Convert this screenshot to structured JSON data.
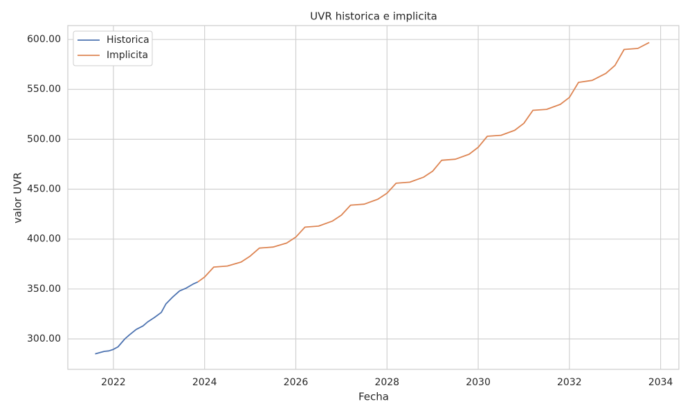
{
  "chart_data": {
    "type": "line",
    "title": "UVR historica e implicita",
    "xlabel": "Fecha",
    "ylabel": "valor UVR",
    "xlim": [
      2021.0,
      2034.4
    ],
    "xticks": [
      2022,
      2024,
      2026,
      2028,
      2030,
      2032,
      2034
    ],
    "ylim": [
      269.5,
      613.9
    ],
    "yticks": [
      {
        "value": 300,
        "label": "300.00"
      },
      {
        "value": 350,
        "label": "350.00"
      },
      {
        "value": 400,
        "label": "400.00"
      },
      {
        "value": 450,
        "label": "450.00"
      },
      {
        "value": 500,
        "label": "500.00"
      },
      {
        "value": 550,
        "label": "550.00"
      },
      {
        "value": 600,
        "label": "600.00"
      }
    ],
    "grid": true,
    "legend": "upper-left",
    "series": [
      {
        "name": "Historica",
        "color": "#4c72b0",
        "x": [
          2021.6,
          2021.8,
          2021.9,
          2022.0,
          2022.1,
          2022.25,
          2022.35,
          2022.5,
          2022.65,
          2022.75,
          2022.9,
          2023.05,
          2023.15,
          2023.3,
          2023.45,
          2023.6,
          2023.75,
          2023.85
        ],
        "values": [
          285,
          287.5,
          288,
          289.5,
          292,
          300,
          304,
          309.5,
          313,
          317,
          321.5,
          326.5,
          335,
          342,
          348,
          351,
          355,
          357
        ]
      },
      {
        "name": "Implicita",
        "color": "#dd8452",
        "x": [
          2023.85,
          2024.0,
          2024.2,
          2024.5,
          2024.8,
          2025.0,
          2025.2,
          2025.5,
          2025.8,
          2026.0,
          2026.2,
          2026.5,
          2026.8,
          2027.0,
          2027.2,
          2027.5,
          2027.8,
          2028.0,
          2028.2,
          2028.5,
          2028.8,
          2029.0,
          2029.2,
          2029.5,
          2029.8,
          2030.0,
          2030.2,
          2030.5,
          2030.8,
          2031.0,
          2031.2,
          2031.5,
          2031.8,
          2032.0,
          2032.2,
          2032.5,
          2032.8,
          2033.0,
          2033.2,
          2033.5,
          2033.75
        ],
        "values": [
          357,
          362,
          372,
          373,
          377,
          383,
          391,
          392,
          396,
          402,
          412,
          413,
          418,
          424,
          434,
          435,
          440,
          446,
          456,
          457,
          462,
          468,
          479,
          480,
          485,
          492,
          503,
          504,
          509,
          516,
          529,
          530,
          535,
          542,
          557,
          559,
          566,
          574,
          590,
          591,
          597
        ]
      }
    ]
  }
}
